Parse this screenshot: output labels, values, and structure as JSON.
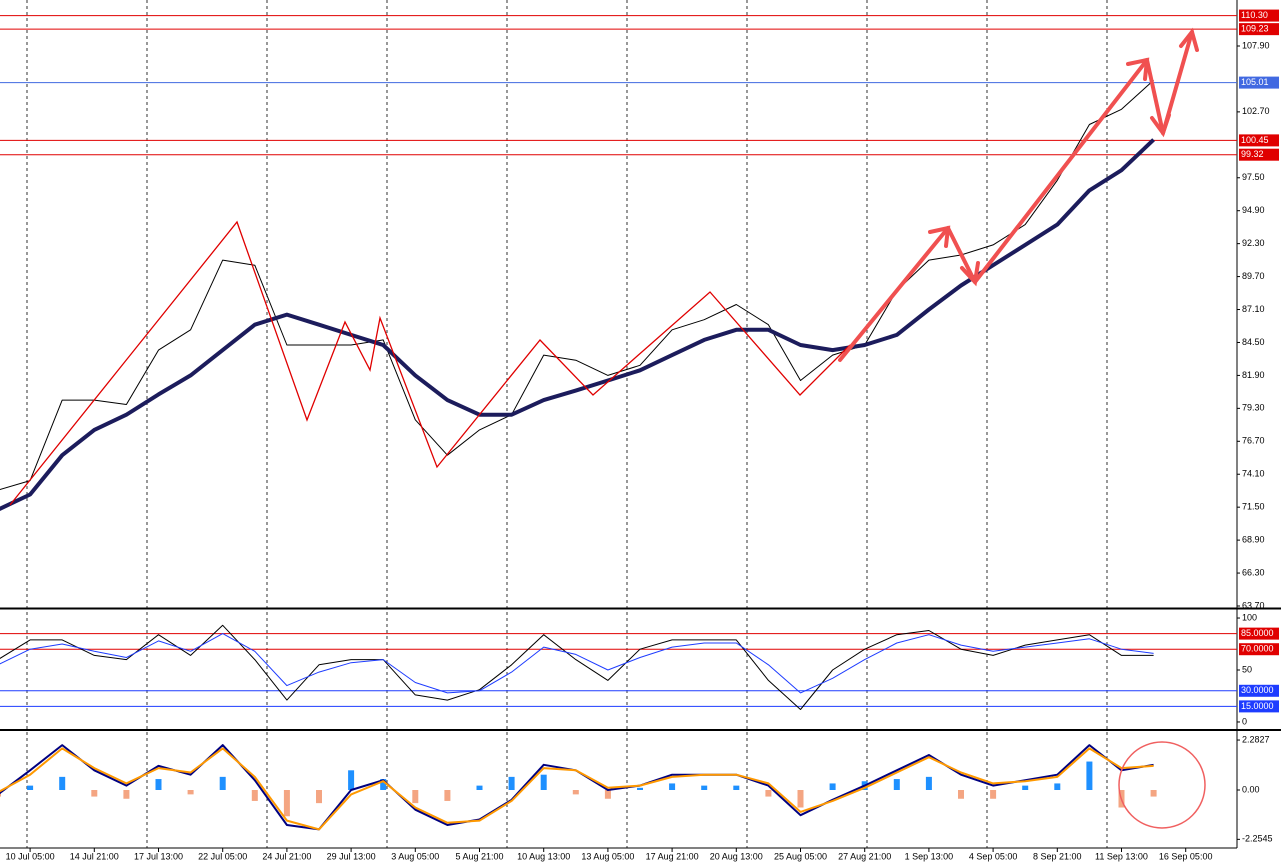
{
  "chart_data": [
    {
      "type": "line",
      "categories": [
        null,
        "10 Jul 05:00",
        null,
        "14 Jul 21:00",
        null,
        "17 Jul 13:00",
        null,
        "22 Jul 05:00",
        null,
        "24 Jul 21:00",
        null,
        "29 Jul 13:00",
        null,
        "3 Aug 05:00",
        null,
        "5 Aug 21:00",
        null,
        "10 Aug 13:00",
        null,
        "13 Aug 05:00",
        null,
        "17 Aug 21:00",
        null,
        "20 Aug 13:00",
        null,
        "25 Aug 05:00",
        null,
        "27 Aug 21:00",
        null,
        "1 Sep 13:00",
        null,
        "4 Sep 05:00",
        null,
        "8 Sep 21:00",
        null,
        "11 Sep 13:00",
        null,
        "16 Sep 05:00"
      ],
      "series": [
        {
          "color": "#000000",
          "values": [
            72.85,
            73.6,
            79.95,
            79.95,
            79.6,
            83.9,
            85.5,
            91.0,
            90.6,
            84.3,
            84.3,
            84.3,
            84.7,
            78.4,
            75.6,
            77.6,
            78.8,
            83.5,
            83.1,
            81.9,
            82.7,
            85.5,
            86.3,
            87.5,
            85.9,
            81.5,
            83.5,
            84.3,
            88.6,
            91.0,
            91.4,
            92.2,
            93.8,
            97.3,
            101.7,
            102.9,
            105.2,
            null
          ]
        },
        {
          "color": "#1c1c5c",
          "values": [
            71.3,
            72.5,
            75.6,
            77.6,
            78.8,
            80.4,
            81.9,
            83.9,
            85.9,
            86.7,
            85.9,
            85.1,
            84.3,
            81.9,
            79.95,
            78.8,
            78.8,
            79.95,
            80.7,
            81.5,
            82.3,
            83.5,
            84.7,
            85.5,
            85.5,
            84.3,
            83.9,
            84.3,
            85.1,
            87.1,
            89.0,
            90.6,
            92.2,
            93.8,
            96.5,
            98.1,
            100.5,
            null
          ]
        }
      ],
      "ylim": [
        63.7,
        111.53
      ],
      "yticks": [
        {
          "value": 63.7,
          "label": "63.70"
        },
        {
          "value": 66.3,
          "label": "66.30"
        },
        {
          "value": 68.9,
          "label": "68.90"
        },
        {
          "value": 71.5,
          "label": "71.50"
        },
        {
          "value": 74.1,
          "label": "74.10"
        },
        {
          "value": 76.7,
          "label": "76.70"
        },
        {
          "value": 79.3,
          "label": "79.30"
        },
        {
          "value": 81.9,
          "label": "81.90"
        },
        {
          "value": 84.5,
          "label": "84.50"
        },
        {
          "value": 87.1,
          "label": "87.10"
        },
        {
          "value": 89.7,
          "label": "89.70"
        },
        {
          "value": 92.3,
          "label": "92.30"
        },
        {
          "value": 94.9,
          "label": "94.90"
        },
        {
          "value": 97.5,
          "label": "97.50"
        },
        {
          "value": 102.7,
          "label": "102.70"
        },
        {
          "value": 107.9,
          "label": "107.90"
        }
      ],
      "hlines": [
        {
          "value": 110.3,
          "label": "110.30",
          "color": "#e00000"
        },
        {
          "value": 109.23,
          "label": "109.23",
          "color": "#e00000"
        },
        {
          "value": 105.01,
          "label": "105.01",
          "color": "#4169e1"
        },
        {
          "value": 100.45,
          "label": "100.45",
          "color": "#e00000"
        },
        {
          "value": 99.32,
          "label": "99.32",
          "color": "#e00000"
        }
      ]
    },
    {
      "type": "line",
      "series": [
        {
          "color": "#000000",
          "values": [
            60,
            79,
            79,
            64,
            60,
            84,
            64,
            93,
            60,
            21,
            55,
            60,
            60,
            26,
            21,
            31,
            55,
            84,
            60,
            40,
            70,
            79,
            79,
            79,
            40,
            12,
            50,
            70,
            84,
            88,
            70,
            64,
            74,
            79,
            84,
            64,
            64,
            null
          ]
        },
        {
          "color": "#1e3cff",
          "values": [
            55,
            70,
            75,
            68,
            62,
            78,
            68,
            85,
            68,
            35,
            48,
            57,
            60,
            38,
            28,
            30,
            48,
            72,
            65,
            50,
            62,
            72,
            76,
            76,
            55,
            28,
            42,
            60,
            76,
            84,
            74,
            68,
            72,
            76,
            80,
            70,
            66,
            null
          ]
        }
      ],
      "ylim": [
        -5.8,
        105.8
      ],
      "yticks": [
        0,
        50,
        100
      ],
      "hlines": [
        {
          "value": 85,
          "label": "85.0000",
          "color": "#e00000"
        },
        {
          "value": 70,
          "label": "70.0000",
          "color": "#e00000"
        },
        {
          "value": 30,
          "label": "30.0000",
          "color": "#1e3cff"
        },
        {
          "value": 15,
          "label": "15.0000",
          "color": "#1e3cff"
        }
      ]
    },
    {
      "type": "macd",
      "series": [
        {
          "color": "#000080",
          "values": [
            -0.2,
            0.9,
            2.05,
            0.9,
            0.2,
            1.1,
            0.7,
            2.05,
            0.45,
            -1.6,
            -1.8,
            0,
            0.45,
            -0.9,
            -1.6,
            -1.35,
            -0.45,
            1.15,
            0.9,
            0,
            0.2,
            0.7,
            0.7,
            0.7,
            0.2,
            -1.15,
            -0.45,
            0.2,
            0.9,
            1.6,
            0.7,
            0.2,
            0.45,
            0.7,
            2.05,
            0.9,
            1.15,
            null
          ]
        },
        {
          "color": "#ff9900",
          "values": [
            -0.1,
            0.7,
            1.9,
            1.0,
            0.3,
            1.0,
            0.8,
            1.9,
            0.6,
            -1.4,
            -1.8,
            -0.2,
            0.4,
            -0.8,
            -1.5,
            -1.4,
            -0.5,
            1.0,
            0.9,
            0.1,
            0.2,
            0.6,
            0.7,
            0.7,
            0.3,
            -1.0,
            -0.5,
            0.1,
            0.8,
            1.5,
            0.8,
            0.3,
            0.4,
            0.6,
            1.9,
            1.0,
            1.1,
            null
          ]
        }
      ],
      "histogram": {
        "positive_color": "#1e90ff",
        "negative_color": "#f4a582",
        "values": [
          -0.3,
          0.2,
          0.6,
          -0.3,
          -0.4,
          0.5,
          -0.2,
          0.6,
          -0.5,
          -1.2,
          -0.6,
          0.9,
          0.5,
          -0.6,
          -0.5,
          0.2,
          0.6,
          0.7,
          -0.2,
          -0.4,
          0.1,
          0.3,
          0.2,
          0.2,
          -0.3,
          -0.8,
          0.3,
          0.4,
          0.5,
          0.6,
          -0.4,
          -0.4,
          0.2,
          0.3,
          1.3,
          -0.8,
          -0.3,
          null
        ]
      },
      "ylim": [
        -2.65,
        2.65
      ],
      "yticks": [
        2.2827,
        {
          "value": 0,
          "label": "0.00"
        },
        -2.2545
      ]
    }
  ]
}
